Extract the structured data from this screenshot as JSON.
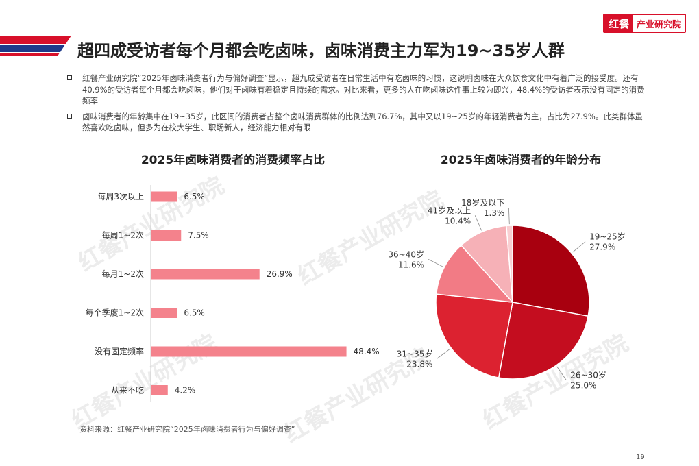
{
  "header": {
    "title": "超四成受访者每个月都会吃卤味，卤味消费主力军为19~35岁人群",
    "logo_mark": "红餐",
    "logo_text": "产业研究院",
    "colors": {
      "accent_red": "#d8102a",
      "accent_blue": "#1f3a8a"
    }
  },
  "bullets": [
    "红餐产业研究院“2025年卤味消费者行为与偏好调查”显示，超九成受访者在日常生活中有吃卤味的习惯，这说明卤味在大众饮食文化中有着广泛的接受度。还有40.9%的受访者每个月都会吃卤味，他们对于卤味有着稳定且持续的需求。对比来看，更多的人在吃卤味这件事上较为即兴，48.4%的受访者表示没有固定的消费频率",
    "卤味消费者的年龄集中在19~35岁，此区间的消费者占整个卤味消费群体的比例达到76.7%，其中又以19~25岁的年轻消费者为主，占比为27.9%。此类群体虽然喜欢吃卤味，但多为在校大学生、职场新人，经济能力相对有限"
  ],
  "chart_data": [
    {
      "type": "bar",
      "orientation": "horizontal",
      "title": "2025年卤味消费者的消费频率占比",
      "categories": [
        "每周3次以上",
        "每周1~2次",
        "每月1~2次",
        "每个季度1~2次",
        "没有固定频率",
        "从来不吃"
      ],
      "values": [
        6.5,
        7.5,
        26.9,
        6.5,
        48.4,
        4.2
      ],
      "value_labels": [
        "6.5%",
        "7.5%",
        "26.9%",
        "6.5%",
        "48.4%",
        "4.2%"
      ],
      "color": "#f4828c",
      "xlim": [
        0,
        55
      ]
    },
    {
      "type": "pie",
      "title": "2025年卤味消费者的年龄分布",
      "labels": [
        "19~25岁",
        "26~30岁",
        "31~35岁",
        "36~40岁",
        "41岁及以上",
        "18岁及以下"
      ],
      "values": [
        27.9,
        25.0,
        23.8,
        11.6,
        10.4,
        1.3
      ],
      "value_labels": [
        "27.9%",
        "25.0%",
        "23.8%",
        "11.6%",
        "10.4%",
        "1.3%"
      ],
      "colors": [
        "#a8000f",
        "#c40d1f",
        "#dc2230",
        "#f27b85",
        "#f6b1b7",
        "#f9cfd2"
      ],
      "start": "12 o'clock",
      "direction": "clockwise"
    }
  ],
  "footer": {
    "source": "资料来源：红餐产业研究院“2025年卤味消费者行为与偏好调查”",
    "page_number": "19"
  }
}
